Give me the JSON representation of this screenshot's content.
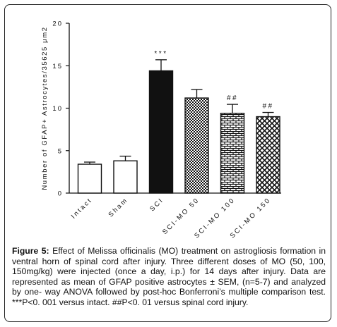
{
  "chart_data": {
    "type": "bar",
    "ylabel": "Number of GFAP+ Astrocytes/35625 μm2",
    "ylim": [
      0,
      20
    ],
    "yticks": [
      0,
      5,
      10,
      15,
      20
    ],
    "categories": [
      "Intact",
      "Sham",
      "SCI",
      "SCI-MO 50",
      "SCI-MO 100",
      "SCI-MO 150"
    ],
    "values": [
      3.4,
      3.8,
      14.4,
      11.2,
      9.4,
      9.0
    ],
    "errors": [
      0.25,
      0.55,
      1.3,
      1.0,
      1.05,
      0.5
    ],
    "fills": [
      "white",
      "white",
      "black",
      "dotted",
      "brick",
      "diamond"
    ],
    "annotations": [
      "",
      "",
      "***",
      "",
      "##",
      "##"
    ],
    "grid": false,
    "legend": "none"
  },
  "caption": {
    "label": "Figure 5:",
    "text": " Effect of Melissa officinalis (MO) treatment on astrogliosis formation in ventral horn of spinal cord after injury. Three different doses of MO (50, 100, 150mg/kg) were injected (once a day, i.p.) for 14 days after injury. Data are represented as mean of GFAP positive astrocytes ± SEM, (n=5-7) and analyzed by one- way ANOVA followed by post-hoc Bonferroni’s multiple comparison test. ***P<0. 001 versus intact. ##P<0. 01 versus spinal cord injury."
  }
}
